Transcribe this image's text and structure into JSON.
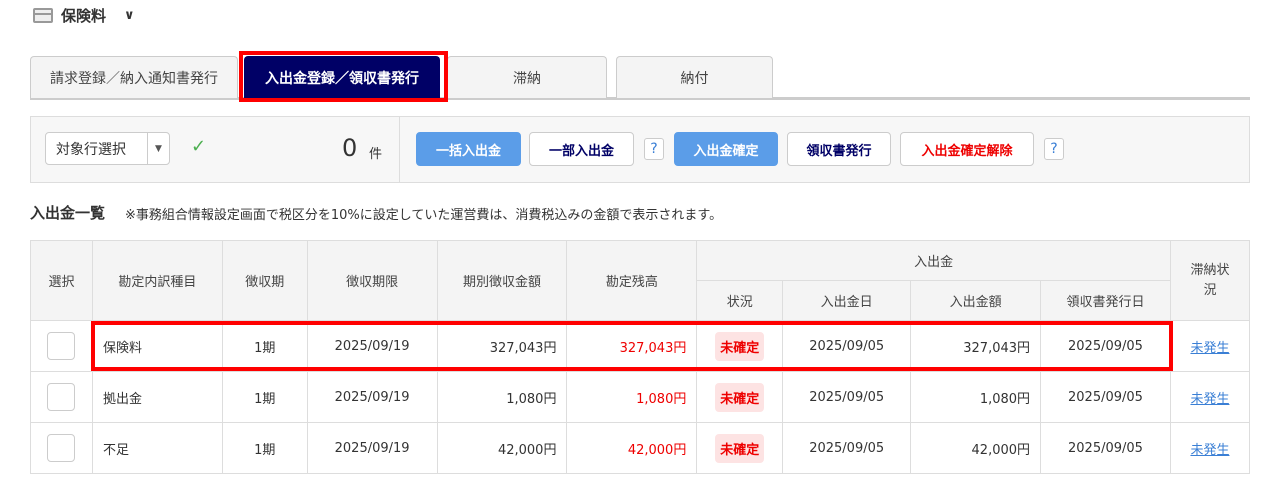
{
  "header": {
    "title": "保険料"
  },
  "tabs": [
    "請求登録／納入通知書発行",
    "入出金登録／領収書発行",
    "滞納",
    "納付"
  ],
  "toolbar": {
    "select": "対象行選択",
    "count": "0",
    "count_unit": "件",
    "bulk": "一括入出金",
    "partial": "一部入出金",
    "help": "?",
    "confirm": "入出金確定",
    "receipt": "領収書発行",
    "cancel": "入出金確定解除"
  },
  "section": {
    "title": "入出金一覧",
    "note": "※事務組合情報設定画面で税区分を10%に設定していた運営費は、消費税込みの金額で表示されます。"
  },
  "table": {
    "headers": {
      "select": "選択",
      "item": "勘定内訳種目",
      "period": "徴収期",
      "deadline": "徴収期限",
      "amount": "期別徴収金額",
      "balance": "勘定残高",
      "group": "入出金",
      "status": "状況",
      "date": "入出金日",
      "paid": "入出金額",
      "receipt_date": "領収書発行日",
      "overdue": "滞納状況"
    },
    "rows": [
      {
        "item": "保険料",
        "period": "1期",
        "deadline": "2025/09/19",
        "amount": "327,043円",
        "balance": "327,043円",
        "status": "未確定",
        "date": "2025/09/05",
        "paid": "327,043円",
        "receipt_date": "2025/09/05",
        "overdue": "未発生"
      },
      {
        "item": "拠出金",
        "period": "1期",
        "deadline": "2025/09/19",
        "amount": "1,080円",
        "balance": "1,080円",
        "status": "未確定",
        "date": "2025/09/05",
        "paid": "1,080円",
        "receipt_date": "2025/09/05",
        "overdue": "未発生"
      },
      {
        "item": "不足",
        "period": "1期",
        "deadline": "2025/09/19",
        "amount": "42,000円",
        "balance": "42,000円",
        "status": "未確定",
        "date": "2025/09/05",
        "paid": "42,000円",
        "receipt_date": "2025/09/05",
        "overdue": "未発生"
      }
    ]
  }
}
